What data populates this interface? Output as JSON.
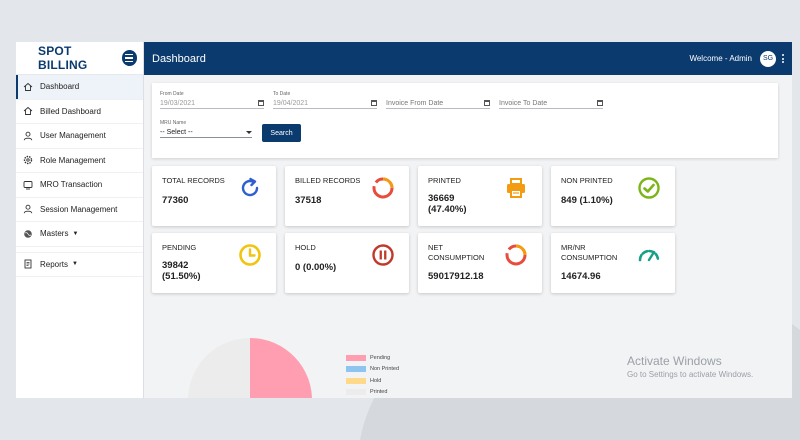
{
  "app": {
    "brand": "SPOT BILLING",
    "page_title": "Dashboard",
    "welcome": "Welcome - Admin",
    "avatar_initials": "SG",
    "accent_color": "#0b3b6e"
  },
  "sidebar": {
    "items": [
      {
        "label": "Dashboard",
        "icon": "home-icon",
        "active": true
      },
      {
        "label": "Billed Dashboard",
        "icon": "home-icon"
      },
      {
        "label": "User Management",
        "icon": "user-icon"
      },
      {
        "label": "Role Management",
        "icon": "gear-icon"
      },
      {
        "label": "MRO Transaction",
        "icon": "device-icon"
      },
      {
        "label": "Session Management",
        "icon": "user-icon"
      },
      {
        "label": "Masters",
        "icon": "globe-icon",
        "has_submenu": true
      },
      {
        "label": "Reports",
        "icon": "report-icon",
        "has_submenu": true
      }
    ]
  },
  "filters": {
    "from_date": {
      "label": "From Date",
      "value": "19/03/2021"
    },
    "to_date": {
      "label": "To Date",
      "value": "19/04/2021"
    },
    "invoice_from": {
      "placeholder": "Invoice From Date"
    },
    "invoice_to": {
      "placeholder": "Invoice To Date"
    },
    "mru": {
      "label": "MRU Name",
      "selected": "-- Select --"
    },
    "search_label": "Search"
  },
  "cards": [
    {
      "title": "TOTAL RECORDS",
      "value": "77360",
      "icon": "refresh-icon",
      "color": "#2f5fd0"
    },
    {
      "title": "BILLED RECORDS",
      "value": "37518",
      "icon": "donut-progress-icon",
      "color": "#e74c3c"
    },
    {
      "title": "PRINTED",
      "value": "36669",
      "value2": "(47.40%)",
      "icon": "printer-icon",
      "color": "#f39c12"
    },
    {
      "title": "NON PRINTED",
      "value": "849 (1.10%)",
      "icon": "check-circle-icon",
      "color": "#7cb518"
    },
    {
      "title": "PENDING",
      "value": "39842",
      "value2": "(51.50%)",
      "icon": "clock-icon",
      "color": "#f1c40f"
    },
    {
      "title": "HOLD",
      "value": "0 (0.00%)",
      "icon": "pause-circle-icon",
      "color": "#c0392b"
    },
    {
      "title": "NET",
      "title2": "CONSUMPTION",
      "value": "59017912.18",
      "icon": "donut-progress-icon",
      "color": "#e74c3c"
    },
    {
      "title": "MR/NR",
      "title2": "CONSUMPTION",
      "value": "14674.96",
      "icon": "gauge-icon",
      "color": "#16a085"
    }
  ],
  "chart_data": {
    "type": "pie",
    "categories": [
      "Pending",
      "Non Printed",
      "Hold",
      "Printed"
    ],
    "values": [
      51.5,
      1.1,
      0.0,
      47.4
    ],
    "colors": [
      "#ff9eb1",
      "#8ec5f0",
      "#ffd98a",
      "#ececec"
    ],
    "legend": "right"
  },
  "watermark": {
    "title": "Activate Windows",
    "subtitle": "Go to Settings to activate Windows."
  }
}
